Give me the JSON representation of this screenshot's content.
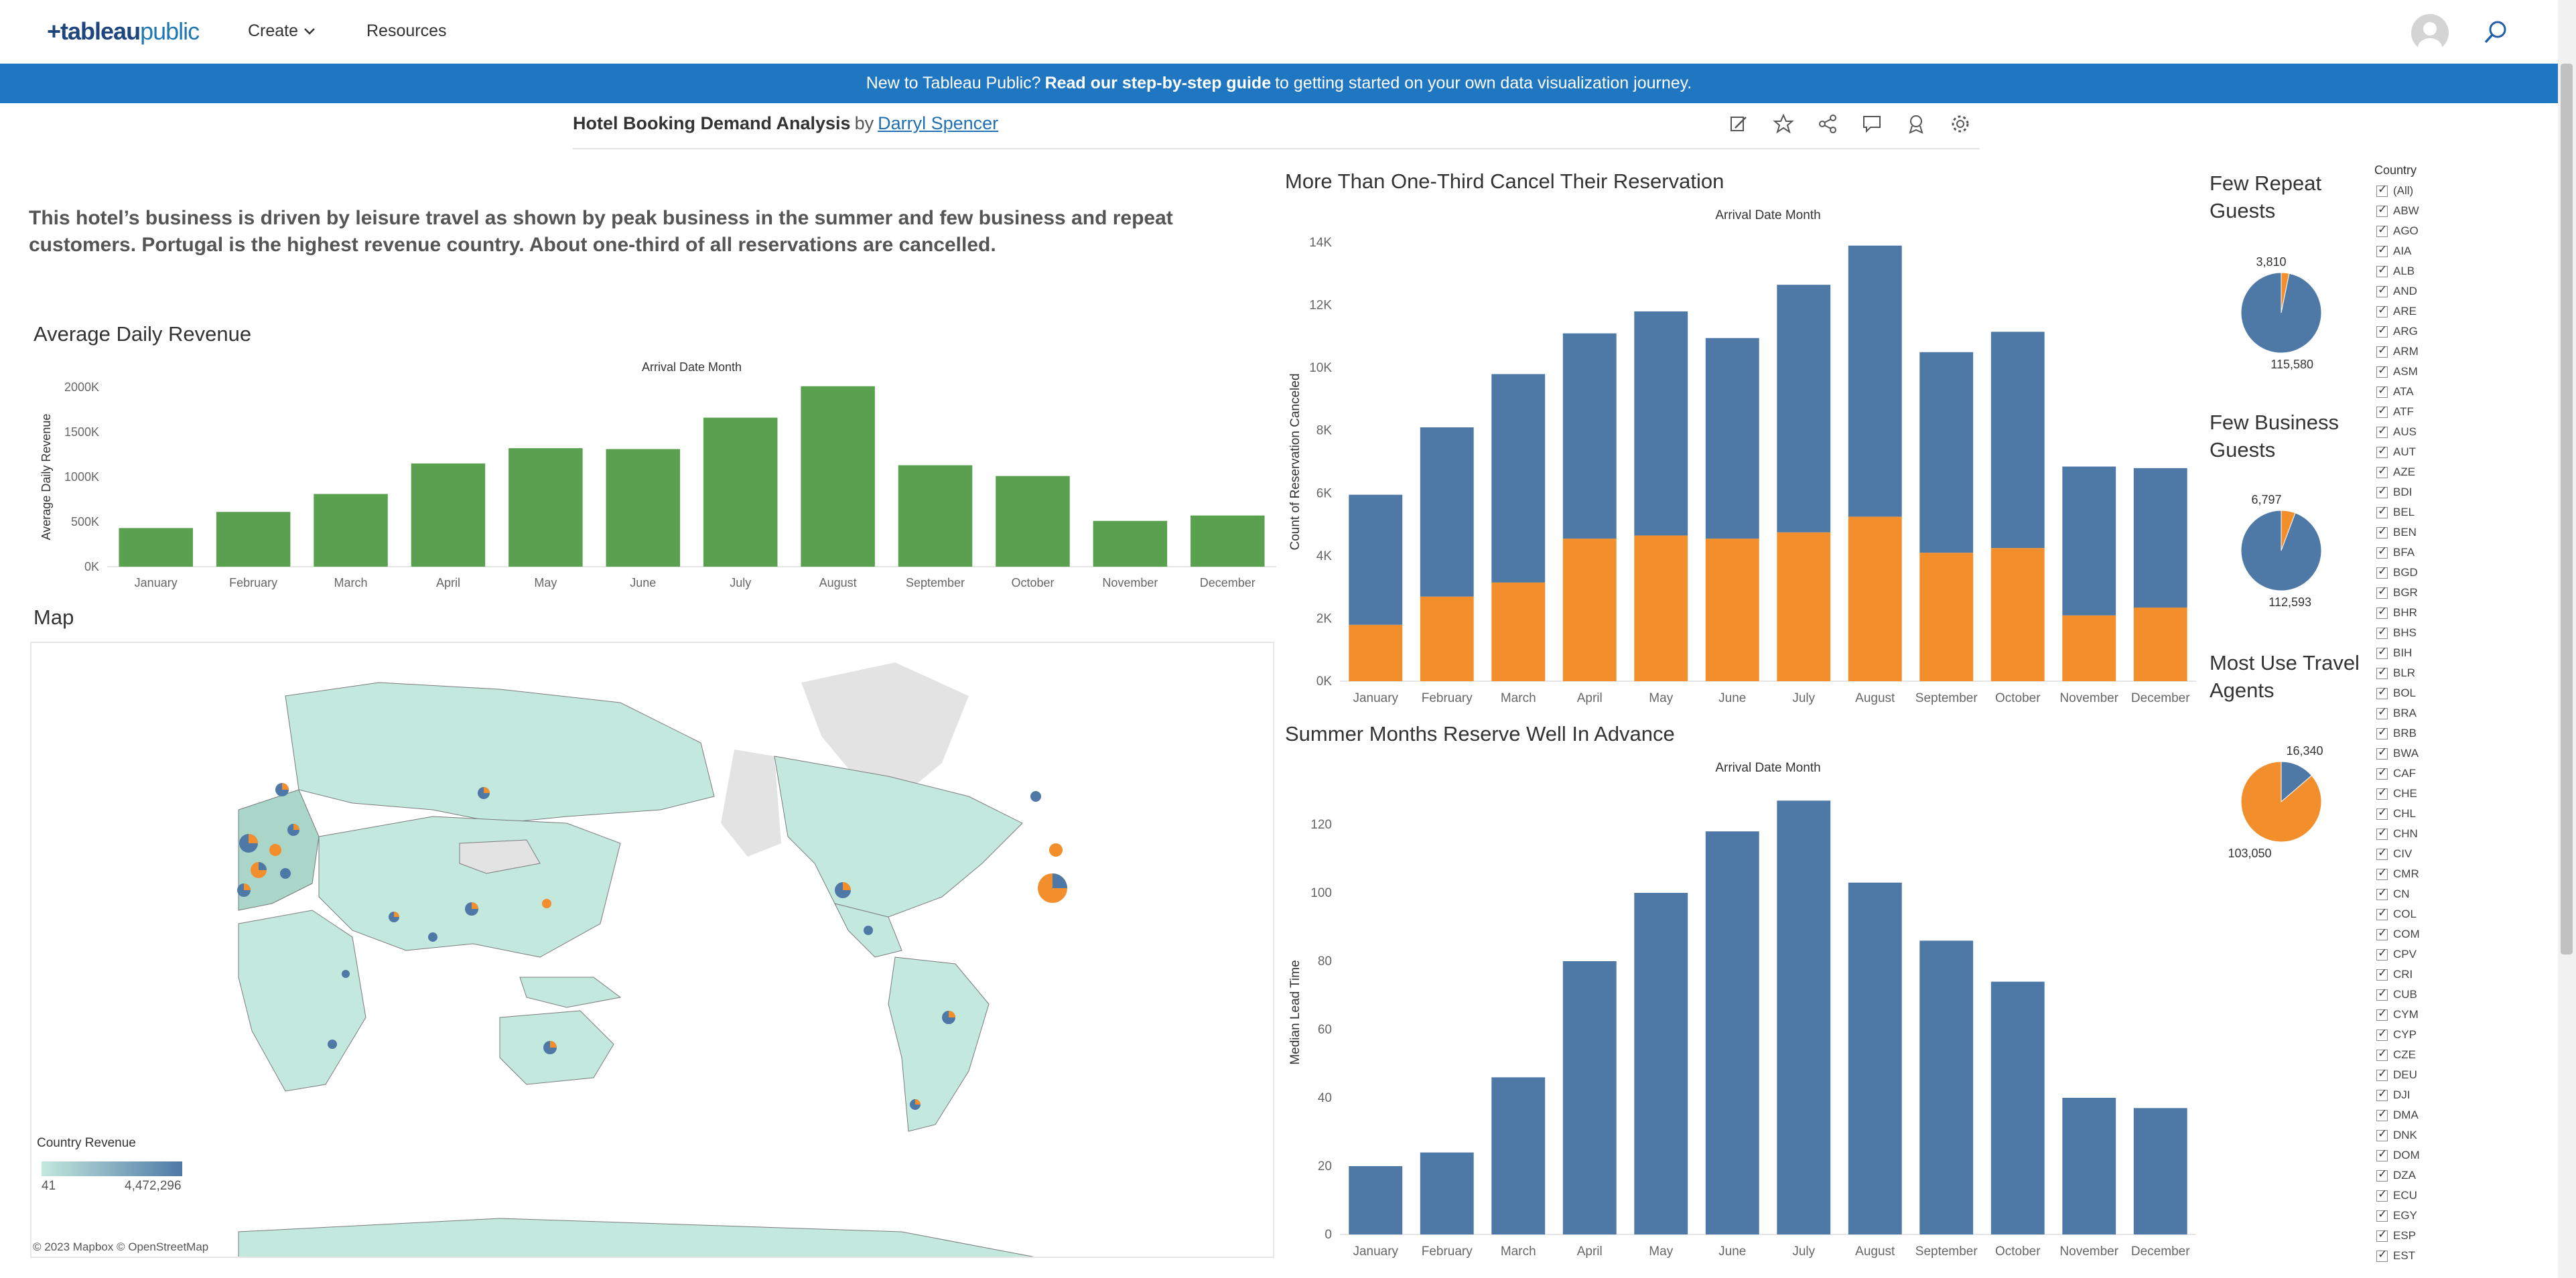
{
  "nav": {
    "logo_main": "+tableau",
    "logo_sub": "public",
    "create_label": "Create",
    "resources_label": "Resources"
  },
  "banner": {
    "prefix": "New to Tableau Public?",
    "link": "Read our step-by-step guide",
    "suffix": "to getting started on your own data visualization journey."
  },
  "viz": {
    "title": "Hotel Booking Demand Analysis",
    "by": "by",
    "author": "Darryl Spencer",
    "toolbar_icons": [
      "edit-icon",
      "star-icon",
      "share-icon",
      "comment-icon",
      "profile-icon",
      "settings-icon"
    ]
  },
  "summary": "This hotel’s business is driven by leisure travel as shown by peak business in the summer and few business and repeat customers. Portugal is the highest revenue country. About one-third of all reservations are cancelled.",
  "sections": {
    "avg_daily_revenue": "Average Daily Revenue",
    "map": "Map",
    "cancel": "More Than One-Third Cancel Their Reservation",
    "lead": "Summer Months Reserve Well In Advance",
    "repeat": [
      "Few Repeat",
      "Guests"
    ],
    "business": [
      "Few Business",
      "Guests"
    ],
    "agents": [
      "Most Use Travel",
      "Agents"
    ]
  },
  "map": {
    "legend_title": "Country Revenue",
    "legend_min": "41",
    "legend_max": "4,472,296",
    "credit": "© 2023 Mapbox  © OpenStreetMap",
    "colors": {
      "low": "#c3e8dd",
      "high": "#4e79a7",
      "ocean": "#ffffff",
      "no_data": "#e0e0e0"
    }
  },
  "colors": {
    "green": "#59a14f",
    "blue": "#4e79a7",
    "orange": "#f28e2b",
    "axis_text": "#666666",
    "grid": "#eeeeee"
  },
  "chart_data": [
    {
      "id": "adr",
      "type": "bar",
      "title": "Average Daily Revenue",
      "top_label": "Arrival Date Month",
      "xlabel": "",
      "ylabel": "Average Daily Revenue",
      "categories": [
        "January",
        "February",
        "March",
        "April",
        "May",
        "June",
        "July",
        "August",
        "September",
        "October",
        "November",
        "December"
      ],
      "values": [
        430000,
        610000,
        810000,
        1150000,
        1320000,
        1310000,
        1660000,
        2010000,
        1130000,
        1010000,
        510000,
        570000
      ],
      "ylim": [
        0,
        2000000
      ],
      "yticks": [
        {
          "value": 0,
          "label": "0K"
        },
        {
          "value": 500000,
          "label": "500K"
        },
        {
          "value": 1000000,
          "label": "1000K"
        },
        {
          "value": 1500000,
          "label": "1500K"
        },
        {
          "value": 2000000,
          "label": "2000K"
        }
      ],
      "grid": false
    },
    {
      "id": "cancel",
      "type": "bar",
      "stacked": true,
      "title": "More Than One-Third Cancel Their Reservation",
      "top_label": "Arrival Date Month",
      "ylabel": "Count of Reservation Canceled",
      "categories": [
        "January",
        "February",
        "March",
        "April",
        "May",
        "June",
        "July",
        "August",
        "September",
        "October",
        "November",
        "December"
      ],
      "series": [
        {
          "color": "orange",
          "values": [
            1800,
            2700,
            3150,
            4550,
            4650,
            4550,
            4750,
            5250,
            4100,
            4250,
            2100,
            2350
          ]
        },
        {
          "color": "blue",
          "values": [
            4150,
            5400,
            6650,
            6550,
            7150,
            6400,
            7900,
            8650,
            6400,
            6900,
            4750,
            4450
          ]
        }
      ],
      "ylim": [
        0,
        14000
      ],
      "yticks": [
        {
          "value": 0,
          "label": "0K"
        },
        {
          "value": 2000,
          "label": "2K"
        },
        {
          "value": 4000,
          "label": "4K"
        },
        {
          "value": 6000,
          "label": "6K"
        },
        {
          "value": 8000,
          "label": "8K"
        },
        {
          "value": 10000,
          "label": "10K"
        },
        {
          "value": 12000,
          "label": "12K"
        },
        {
          "value": 14000,
          "label": "14K"
        }
      ],
      "grid": false
    },
    {
      "id": "lead",
      "type": "bar",
      "title": "Summer Months Reserve Well In Advance",
      "top_label": "Arrival Date Month",
      "ylabel": "Median Lead Time",
      "categories": [
        "January",
        "February",
        "March",
        "April",
        "May",
        "June",
        "July",
        "August",
        "September",
        "October",
        "November",
        "December"
      ],
      "values": [
        20,
        24,
        46,
        80,
        100,
        118,
        127,
        103,
        86,
        74,
        40,
        37
      ],
      "ylim": [
        0,
        130
      ],
      "yticks": [
        {
          "value": 0,
          "label": "0"
        },
        {
          "value": 20,
          "label": "20"
        },
        {
          "value": 40,
          "label": "40"
        },
        {
          "value": 60,
          "label": "60"
        },
        {
          "value": 80,
          "label": "80"
        },
        {
          "value": 100,
          "label": "100"
        },
        {
          "value": 120,
          "label": "120"
        }
      ],
      "grid": false
    },
    {
      "id": "repeat",
      "type": "pie",
      "slices": [
        {
          "label": "3,810",
          "value": 3810,
          "color": "orange"
        },
        {
          "label": "115,580",
          "value": 115580,
          "color": "blue"
        }
      ]
    },
    {
      "id": "business",
      "type": "pie",
      "slices": [
        {
          "label": "6,797",
          "value": 6797,
          "color": "orange"
        },
        {
          "label": "112,593",
          "value": 112593,
          "color": "blue"
        }
      ]
    },
    {
      "id": "agents",
      "type": "pie",
      "slices": [
        {
          "label": "16,340",
          "value": 16340,
          "color": "blue"
        },
        {
          "label": "103,050",
          "value": 103050,
          "color": "orange"
        }
      ]
    }
  ],
  "filter": {
    "title": "Country",
    "items": [
      "(All)",
      "ABW",
      "AGO",
      "AIA",
      "ALB",
      "AND",
      "ARE",
      "ARG",
      "ARM",
      "ASM",
      "ATA",
      "ATF",
      "AUS",
      "AUT",
      "AZE",
      "BDI",
      "BEL",
      "BEN",
      "BFA",
      "BGD",
      "BGR",
      "BHR",
      "BHS",
      "BIH",
      "BLR",
      "BOL",
      "BRA",
      "BRB",
      "BWA",
      "CAF",
      "CHE",
      "CHL",
      "CHN",
      "CIV",
      "CMR",
      "CN",
      "COL",
      "COM",
      "CPV",
      "CRI",
      "CUB",
      "CYM",
      "CYP",
      "CZE",
      "DEU",
      "DJI",
      "DMA",
      "DNK",
      "DOM",
      "DZA",
      "ECU",
      "EGY",
      "ESP",
      "EST"
    ]
  }
}
